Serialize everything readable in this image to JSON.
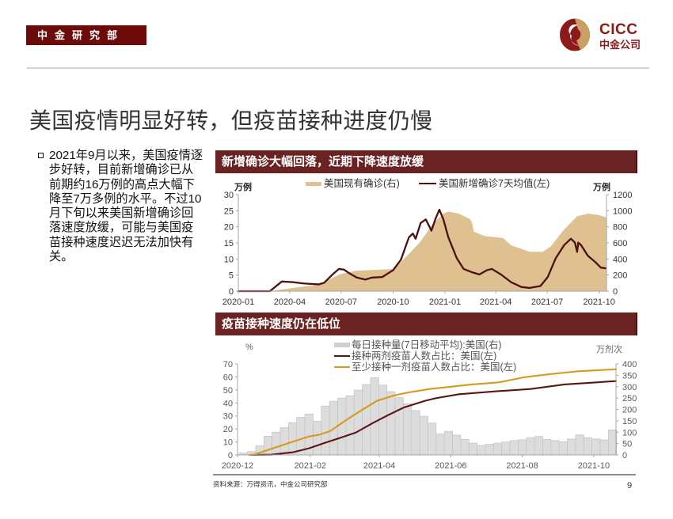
{
  "header": {
    "dept_label": "中金研究部",
    "logo_en": "CICC",
    "logo_cn": "中金公司"
  },
  "colors": {
    "brand_maroon": "#6d0a0a",
    "panel_header": "#6b2222",
    "logo_red": "#8c1a1a",
    "logo_gold": "#c9a063"
  },
  "title": "美国疫情明显好转，但疫苗接种进度仍慢",
  "bullet": {
    "icon": "hollow-square-bullet",
    "lines": [
      "2021年9月以来，美国疫情逐",
      "步好转，目前新增确诊已从",
      "前期约16万例的高点大幅下",
      "降至7万多例的水平。不过10",
      "月下旬以来美国新增确诊回",
      "落速度放缓，可能与美国疫",
      "苗接种速度迟迟无法加快有",
      "关。"
    ]
  },
  "chart_data": [
    {
      "type": "line",
      "title": "新增确诊大幅回落，近期下降速度放缓",
      "ylabel_left": "万例",
      "ylabel_right": "万例",
      "ylim_left": [
        0,
        30
      ],
      "ylim_right": [
        0,
        1200
      ],
      "yticks_left": [
        0,
        5,
        10,
        15,
        20,
        25,
        30
      ],
      "yticks_right": [
        0,
        200,
        400,
        600,
        800,
        1000,
        1200
      ],
      "x_range": [
        "2020-01-01",
        "2021-10-14"
      ],
      "xticks": [
        {
          "date": "2020-01-01",
          "label": "2020-01"
        },
        {
          "date": "2020-04-01",
          "label": "2020-04"
        },
        {
          "date": "2020-07-01",
          "label": "2020-07"
        },
        {
          "date": "2020-10-01",
          "label": "2020-10"
        },
        {
          "date": "2021-01-01",
          "label": "2021-01"
        },
        {
          "date": "2021-04-01",
          "label": "2021-04"
        },
        {
          "date": "2021-07-01",
          "label": "2021-07"
        },
        {
          "date": "2021-10-01",
          "label": "2021-10"
        }
      ],
      "grid": false,
      "legend_position": "top",
      "series": [
        {
          "name": "美国现有确诊(右)",
          "series_type": "area",
          "axis": "right",
          "color": "#dfc091",
          "points": [
            [
              "2020-01-01",
              0
            ],
            [
              "2020-02-28",
              0
            ],
            [
              "2020-04-07",
              40
            ],
            [
              "2020-05-22",
              80
            ],
            [
              "2020-06-29",
              210
            ],
            [
              "2020-07-27",
              253
            ],
            [
              "2020-10-01",
              275
            ],
            [
              "2020-10-19",
              390
            ],
            [
              "2020-11-17",
              603
            ],
            [
              "2020-12-01",
              740
            ],
            [
              "2020-12-10",
              833
            ],
            [
              "2020-12-29",
              964
            ],
            [
              "2021-01-07",
              990
            ],
            [
              "2021-01-25",
              964
            ],
            [
              "2021-02-14",
              898
            ],
            [
              "2021-02-18",
              849
            ],
            [
              "2021-02-21",
              740
            ],
            [
              "2021-03-12",
              685
            ],
            [
              "2021-04-14",
              660
            ],
            [
              "2021-04-28",
              570
            ],
            [
              "2021-05-31",
              489
            ],
            [
              "2021-06-23",
              489
            ],
            [
              "2021-07-07",
              553
            ],
            [
              "2021-07-31",
              767
            ],
            [
              "2021-08-23",
              931
            ],
            [
              "2021-09-11",
              964
            ],
            [
              "2021-09-30",
              947
            ],
            [
              "2021-10-14",
              915
            ]
          ]
        },
        {
          "name": "美国新增确诊7天均值(左)",
          "series_type": "line",
          "axis": "left",
          "color": "#4c1010",
          "points": [
            [
              "2020-01-01",
              0
            ],
            [
              "2020-02-26",
              0
            ],
            [
              "2020-03-18",
              3.0
            ],
            [
              "2020-04-07",
              2.8
            ],
            [
              "2020-04-25",
              2.4
            ],
            [
              "2020-05-22",
              2.1
            ],
            [
              "2020-06-01",
              2.6
            ],
            [
              "2020-06-16",
              5.2
            ],
            [
              "2020-06-27",
              6.9
            ],
            [
              "2020-07-06",
              6.7
            ],
            [
              "2020-07-17",
              5.4
            ],
            [
              "2020-07-29",
              4.2
            ],
            [
              "2020-08-13",
              3.6
            ],
            [
              "2020-08-24",
              4.2
            ],
            [
              "2020-09-12",
              4.4
            ],
            [
              "2020-10-01",
              6.5
            ],
            [
              "2020-10-15",
              9.8
            ],
            [
              "2020-10-29",
              16.7
            ],
            [
              "2020-11-05",
              17.9
            ],
            [
              "2020-11-10",
              16.3
            ],
            [
              "2020-11-19",
              21.2
            ],
            [
              "2020-11-28",
              22.3
            ],
            [
              "2020-12-08",
              18.8
            ],
            [
              "2020-12-15",
              22.4
            ],
            [
              "2020-12-22",
              25.3
            ],
            [
              "2020-12-29",
              22.4
            ],
            [
              "2021-01-07",
              16.7
            ],
            [
              "2021-01-22",
              10.2
            ],
            [
              "2021-02-03",
              6.9
            ],
            [
              "2021-02-19",
              5.8
            ],
            [
              "2021-03-03",
              5.2
            ],
            [
              "2021-03-16",
              6.5
            ],
            [
              "2021-03-25",
              6.9
            ],
            [
              "2021-04-10",
              5.2
            ],
            [
              "2021-04-28",
              2.8
            ],
            [
              "2021-05-16",
              1.3
            ],
            [
              "2021-05-31",
              1.0
            ],
            [
              "2021-06-19",
              1.6
            ],
            [
              "2021-07-02",
              4.4
            ],
            [
              "2021-07-16",
              10.2
            ],
            [
              "2021-07-31",
              14.3
            ],
            [
              "2021-08-12",
              16.3
            ],
            [
              "2021-08-19",
              15.1
            ],
            [
              "2021-08-23",
              12.2
            ],
            [
              "2021-08-25",
              15.1
            ],
            [
              "2021-08-30",
              14.3
            ],
            [
              "2021-09-11",
              11.0
            ],
            [
              "2021-09-25",
              8.9
            ],
            [
              "2021-10-04",
              7.3
            ],
            [
              "2021-10-13",
              7.1
            ]
          ]
        }
      ]
    },
    {
      "type": "bar",
      "title": "疫苗接种速度仍在低位",
      "ylabel_left": "%",
      "ylabel_right": "万剂次",
      "ylim_left": [
        0,
        70
      ],
      "ylim_right": [
        0,
        400
      ],
      "yticks_left": [
        0,
        10,
        20,
        30,
        40,
        50,
        60,
        70
      ],
      "yticks_right": [
        0,
        50,
        100,
        150,
        200,
        250,
        300,
        350,
        400
      ],
      "x_range": [
        "2020-12-01",
        "2021-10-20"
      ],
      "xticks": [
        {
          "date": "2020-12-01",
          "label": "2020-12"
        },
        {
          "date": "2021-02-01",
          "label": "2021-02"
        },
        {
          "date": "2021-04-01",
          "label": "2021-04"
        },
        {
          "date": "2021-06-01",
          "label": "2021-06"
        },
        {
          "date": "2021-08-01",
          "label": "2021-08"
        },
        {
          "date": "2021-10-01",
          "label": "2021-10"
        }
      ],
      "grid": false,
      "legend_position": "top",
      "series": [
        {
          "name": "每日接种量(7日移动平均):美国(右)",
          "series_type": "bar",
          "axis": "right",
          "color": "#dcdcdc",
          "bar_days": 7,
          "points": [
            [
              "2020-12-06",
              8
            ],
            [
              "2020-12-13",
              15
            ],
            [
              "2020-12-20",
              40
            ],
            [
              "2020-12-27",
              82
            ],
            [
              "2021-01-03",
              100
            ],
            [
              "2021-01-10",
              120
            ],
            [
              "2021-01-17",
              142
            ],
            [
              "2021-01-24",
              165
            ],
            [
              "2021-01-31",
              180
            ],
            [
              "2021-02-07",
              148
            ],
            [
              "2021-02-14",
              215
            ],
            [
              "2021-02-21",
              236
            ],
            [
              "2021-02-28",
              250
            ],
            [
              "2021-03-07",
              260
            ],
            [
              "2021-03-14",
              285
            ],
            [
              "2021-03-21",
              310
            ],
            [
              "2021-03-28",
              340
            ],
            [
              "2021-04-04",
              307
            ],
            [
              "2021-04-11",
              278
            ],
            [
              "2021-04-18",
              252
            ],
            [
              "2021-04-25",
              225
            ],
            [
              "2021-05-02",
              195
            ],
            [
              "2021-05-09",
              170
            ],
            [
              "2021-05-16",
              140
            ],
            [
              "2021-05-23",
              92
            ],
            [
              "2021-05-30",
              104
            ],
            [
              "2021-06-06",
              87
            ],
            [
              "2021-06-13",
              68
            ],
            [
              "2021-06-20",
              52
            ],
            [
              "2021-06-27",
              42
            ],
            [
              "2021-07-04",
              47
            ],
            [
              "2021-07-11",
              52
            ],
            [
              "2021-07-18",
              57
            ],
            [
              "2021-07-25",
              63
            ],
            [
              "2021-08-01",
              67
            ],
            [
              "2021-08-08",
              76
            ],
            [
              "2021-08-15",
              81
            ],
            [
              "2021-08-22",
              68
            ],
            [
              "2021-08-29",
              63
            ],
            [
              "2021-09-05",
              58
            ],
            [
              "2021-09-12",
              70
            ],
            [
              "2021-09-19",
              88
            ],
            [
              "2021-09-26",
              76
            ],
            [
              "2021-10-03",
              70
            ],
            [
              "2021-10-10",
              66
            ],
            [
              "2021-10-17",
              110
            ]
          ]
        },
        {
          "name": "接种两剂疫苗人数占比：美国(左)",
          "series_type": "line",
          "axis": "left",
          "color": "#5c1515",
          "points": [
            [
              "2020-12-11",
              0
            ],
            [
              "2020-12-30",
              0.2
            ],
            [
              "2021-01-17",
              2.0
            ],
            [
              "2021-01-31",
              5.1
            ],
            [
              "2021-02-13",
              9.1
            ],
            [
              "2021-02-27",
              13.2
            ],
            [
              "2021-03-12",
              17.2
            ],
            [
              "2021-03-26",
              24.3
            ],
            [
              "2021-04-08",
              30.4
            ],
            [
              "2021-04-22",
              36.5
            ],
            [
              "2021-05-10",
              41.6
            ],
            [
              "2021-05-19",
              43.6
            ],
            [
              "2021-06-08",
              46.7
            ],
            [
              "2021-07-12",
              49.1
            ],
            [
              "2021-08-08",
              50.7
            ],
            [
              "2021-09-06",
              54.2
            ],
            [
              "2021-10-20",
              56.8
            ]
          ]
        },
        {
          "name": "至少接种一剂疫苗人数占比：美国(左)",
          "series_type": "line",
          "axis": "left",
          "color": "#d6981f",
          "points": [
            [
              "2020-12-11",
              0
            ],
            [
              "2020-12-15",
              0.3
            ],
            [
              "2020-12-26",
              3.5
            ],
            [
              "2021-01-17",
              10.1
            ],
            [
              "2021-01-31",
              14.2
            ],
            [
              "2021-02-09",
              15.6
            ],
            [
              "2021-02-18",
              18.3
            ],
            [
              "2021-03-03",
              26.4
            ],
            [
              "2021-03-17",
              34.5
            ],
            [
              "2021-03-30",
              41.6
            ],
            [
              "2021-04-13",
              45.6
            ],
            [
              "2021-04-26",
              48.1
            ],
            [
              "2021-05-14",
              50.7
            ],
            [
              "2021-06-19",
              54.2
            ],
            [
              "2021-07-12",
              55.8
            ],
            [
              "2021-08-03",
              59.8
            ],
            [
              "2021-08-26",
              62.3
            ],
            [
              "2021-09-17",
              64.3
            ],
            [
              "2021-10-20",
              65.9
            ]
          ]
        }
      ]
    }
  ],
  "footer": {
    "source": "资料来源：万得资讯，中金公司研究部",
    "page_number": "9"
  }
}
